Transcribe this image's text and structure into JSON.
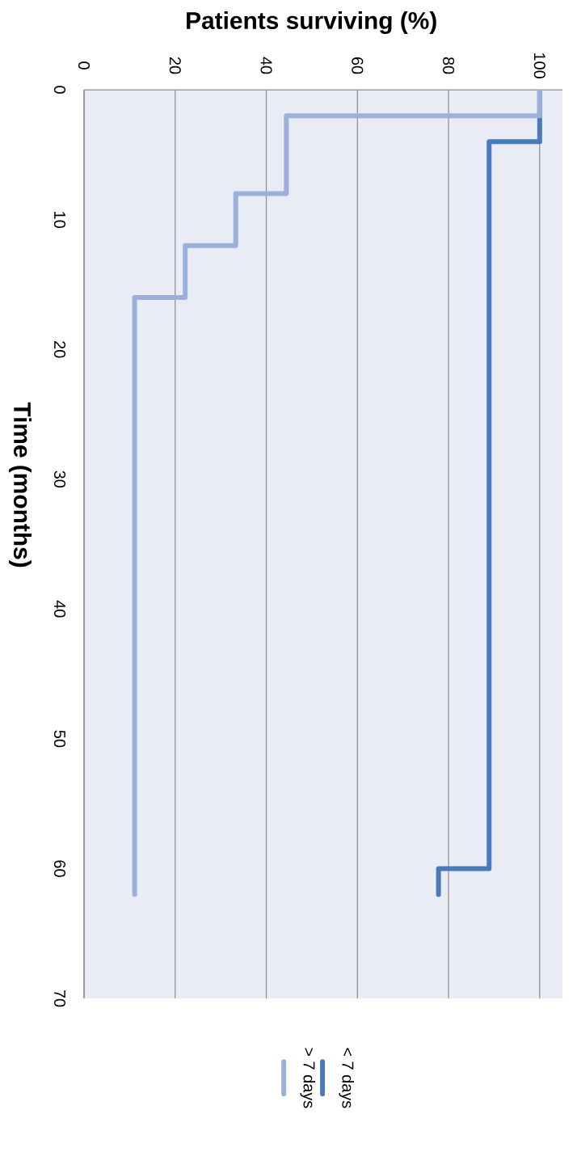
{
  "chart_data": {
    "type": "line",
    "xlabel": "Patients  surviving (%)",
    "ylabel": "Time (months)",
    "xlim": [
      0,
      105
    ],
    "xticks": [
      0,
      20,
      40,
      60,
      80,
      100
    ],
    "ylim": [
      70,
      0
    ],
    "yticks": [
      0,
      10,
      20,
      30,
      40,
      50,
      60,
      70
    ],
    "grid": "x",
    "legend": "bottom",
    "marker": "none",
    "line_style": "solid",
    "series": [
      {
        "name": "< 7 days",
        "color": "#4a7aba",
        "x": [
          100,
          100,
          88.9,
          88.9,
          77.8,
          77.8
        ],
        "values": [
          0,
          4,
          4,
          60,
          60,
          62
        ]
      },
      {
        "name": "> 7 days",
        "color": "#9bb1dc",
        "x": [
          100,
          100,
          44.4,
          44.4,
          33.3,
          33.3,
          22.2,
          22.2,
          11.1,
          11.1
        ],
        "values": [
          0,
          2,
          2,
          8,
          8,
          12,
          12,
          16,
          16,
          62
        ]
      }
    ]
  }
}
